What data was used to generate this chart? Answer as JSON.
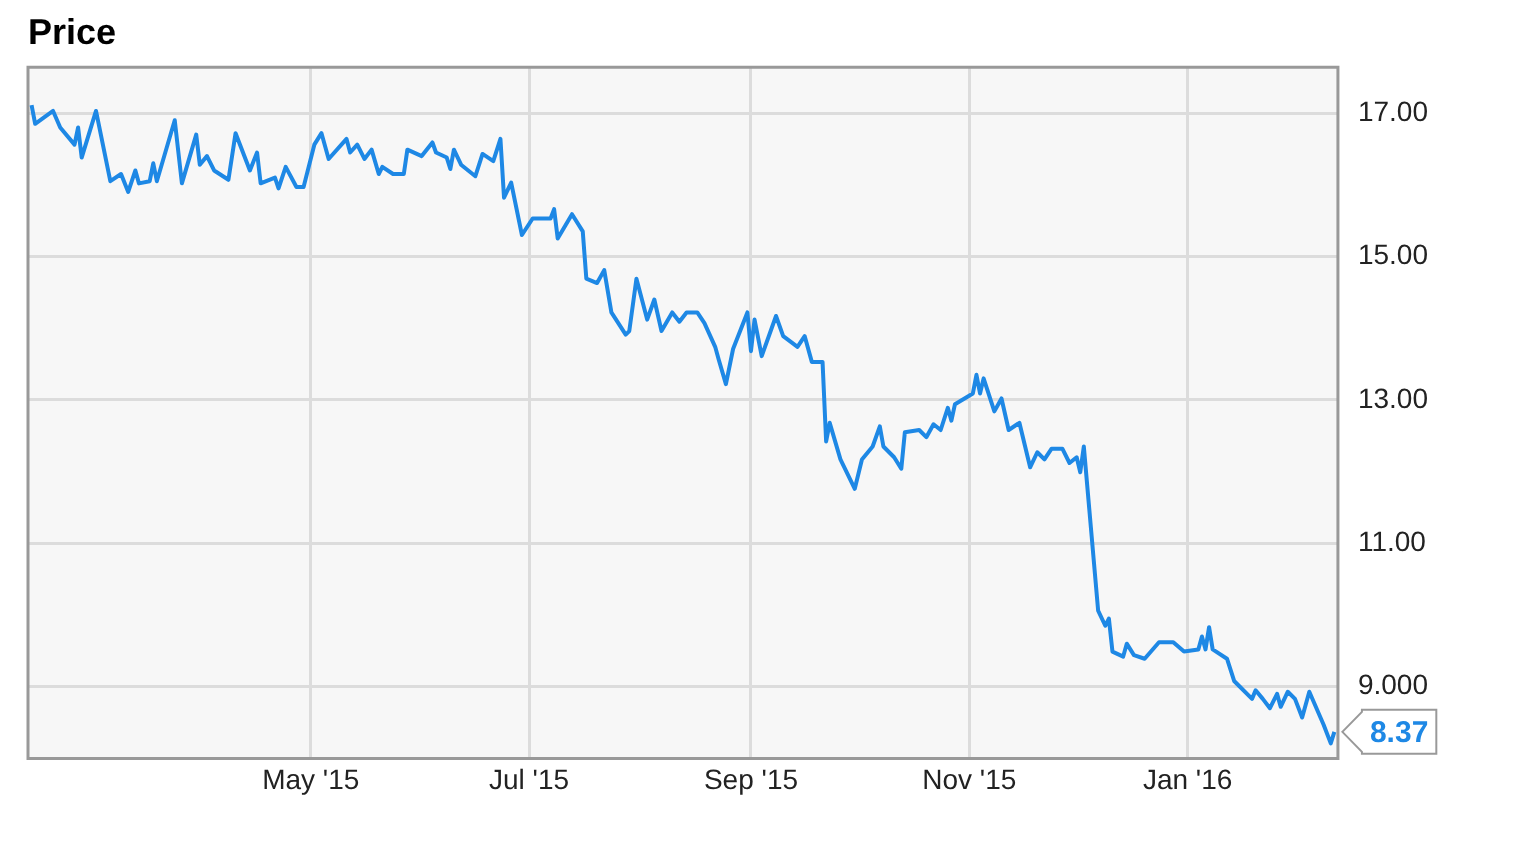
{
  "chart_data": {
    "type": "line",
    "title": "Price",
    "x": [
      "2015-02-12",
      "2015-02-13",
      "2015-02-18",
      "2015-02-20",
      "2015-02-24",
      "2015-02-25",
      "2015-02-26",
      "2015-03-02",
      "2015-03-06",
      "2015-03-09",
      "2015-03-11",
      "2015-03-13",
      "2015-03-14",
      "2015-03-17",
      "2015-03-18",
      "2015-03-19",
      "2015-03-24",
      "2015-03-26",
      "2015-03-30",
      "2015-03-31",
      "2015-04-02",
      "2015-04-04",
      "2015-04-08",
      "2015-04-10",
      "2015-04-14",
      "2015-04-16",
      "2015-04-17",
      "2015-04-21",
      "2015-04-22",
      "2015-04-24",
      "2015-04-27",
      "2015-04-29",
      "2015-05-02",
      "2015-05-04",
      "2015-05-06",
      "2015-05-11",
      "2015-05-12",
      "2015-05-14",
      "2015-05-16",
      "2015-05-18",
      "2015-05-20",
      "2015-05-21",
      "2015-05-24",
      "2015-05-27",
      "2015-05-28",
      "2015-06-01",
      "2015-06-04",
      "2015-06-05",
      "2015-06-08",
      "2015-06-09",
      "2015-06-10",
      "2015-06-12",
      "2015-06-16",
      "2015-06-18",
      "2015-06-21",
      "2015-06-23",
      "2015-06-24",
      "2015-06-26",
      "2015-06-29",
      "2015-07-02",
      "2015-07-07",
      "2015-07-08",
      "2015-07-09",
      "2015-07-13",
      "2015-07-16",
      "2015-07-17",
      "2015-07-20",
      "2015-07-22",
      "2015-07-24",
      "2015-07-28",
      "2015-07-29",
      "2015-07-31",
      "2015-08-03",
      "2015-08-05",
      "2015-08-07",
      "2015-08-10",
      "2015-08-12",
      "2015-08-14",
      "2015-08-17",
      "2015-08-19",
      "2015-08-22",
      "2015-08-23",
      "2015-08-25",
      "2015-08-27",
      "2015-08-31",
      "2015-09-01",
      "2015-09-02",
      "2015-09-04",
      "2015-09-08",
      "2015-09-10",
      "2015-09-14",
      "2015-09-16",
      "2015-09-18",
      "2015-09-21",
      "2015-09-22",
      "2015-09-23",
      "2015-09-26",
      "2015-09-30",
      "2015-10-02",
      "2015-10-05",
      "2015-10-07",
      "2015-10-08",
      "2015-10-11",
      "2015-10-13",
      "2015-10-14",
      "2015-10-18",
      "2015-10-20",
      "2015-10-22",
      "2015-10-24",
      "2015-10-26",
      "2015-10-27",
      "2015-10-28",
      "2015-11-02",
      "2015-11-03",
      "2015-11-04",
      "2015-11-05",
      "2015-11-08",
      "2015-11-10",
      "2015-11-12",
      "2015-11-15",
      "2015-11-18",
      "2015-11-20",
      "2015-11-22",
      "2015-11-24",
      "2015-11-27",
      "2015-11-29",
      "2015-12-01",
      "2015-12-02",
      "2015-12-03",
      "2015-12-07",
      "2015-12-09",
      "2015-12-10",
      "2015-12-11",
      "2015-12-14",
      "2015-12-15",
      "2015-12-17",
      "2015-12-20",
      "2015-12-24",
      "2015-12-28",
      "2015-12-31",
      "2016-01-04",
      "2016-01-05",
      "2016-01-06",
      "2016-01-07",
      "2016-01-08",
      "2016-01-12",
      "2016-01-14",
      "2016-01-19",
      "2016-01-20",
      "2016-01-22",
      "2016-01-24",
      "2016-01-26",
      "2016-01-27",
      "2016-01-29",
      "2016-01-31",
      "2016-02-02",
      "2016-02-04",
      "2016-02-08",
      "2016-02-10",
      "2016-02-11"
    ],
    "series": [
      {
        "color": "#1e88e5",
        "values": [
          17.11,
          16.85,
          17.03,
          16.8,
          16.56,
          16.8,
          16.38,
          17.03,
          16.05,
          16.15,
          15.9,
          16.2,
          16.02,
          16.05,
          16.3,
          16.05,
          16.9,
          16.02,
          16.7,
          16.28,
          16.4,
          16.2,
          16.07,
          16.72,
          16.2,
          16.45,
          16.02,
          16.1,
          15.95,
          16.25,
          15.97,
          15.97,
          16.56,
          16.72,
          16.36,
          16.64,
          16.45,
          16.56,
          16.36,
          16.49,
          16.15,
          16.25,
          16.15,
          16.15,
          16.49,
          16.4,
          16.59,
          16.45,
          16.38,
          16.22,
          16.49,
          16.28,
          16.12,
          16.43,
          16.33,
          16.64,
          15.82,
          16.03,
          15.3,
          15.53,
          15.53,
          15.66,
          15.25,
          15.59,
          15.35,
          14.69,
          14.63,
          14.81,
          14.22,
          13.91,
          13.96,
          14.69,
          14.12,
          14.4,
          13.96,
          14.22,
          14.09,
          14.22,
          14.22,
          14.07,
          13.74,
          13.56,
          13.22,
          13.71,
          14.22,
          13.68,
          14.12,
          13.61,
          14.17,
          13.89,
          13.74,
          13.89,
          13.53,
          13.53,
          12.42,
          12.68,
          12.17,
          11.76,
          12.17,
          12.35,
          12.63,
          12.35,
          12.2,
          12.04,
          12.55,
          12.58,
          12.48,
          12.66,
          12.58,
          12.89,
          12.71,
          12.94,
          13.09,
          13.35,
          13.09,
          13.3,
          12.84,
          13.02,
          12.58,
          12.68,
          12.06,
          12.27,
          12.17,
          12.32,
          12.32,
          12.12,
          12.2,
          11.99,
          12.35,
          10.06,
          9.85,
          9.95,
          9.49,
          9.42,
          9.6,
          9.44,
          9.39,
          9.62,
          9.62,
          9.49,
          9.52,
          9.7,
          9.52,
          9.83,
          9.52,
          9.39,
          9.08,
          8.83,
          8.95,
          8.83,
          8.7,
          8.9,
          8.72,
          8.93,
          8.83,
          8.57,
          8.93,
          8.47,
          8.21,
          8.37
        ]
      }
    ],
    "xlim": [
      "2015-02-11",
      "2016-02-12"
    ],
    "xticks": [
      {
        "value": "2015-05-01",
        "label": "May '15"
      },
      {
        "value": "2015-07-01",
        "label": "Jul '15"
      },
      {
        "value": "2015-09-01",
        "label": "Sep '15"
      },
      {
        "value": "2015-11-01",
        "label": "Nov '15"
      },
      {
        "value": "2016-01-01",
        "label": "Jan '16"
      }
    ],
    "ylim": [
      8.0,
      17.64
    ],
    "yticks": [
      {
        "value": 9,
        "label": "9.000"
      },
      {
        "value": 11,
        "label": "11.00"
      },
      {
        "value": 13,
        "label": "13.00"
      },
      {
        "value": 15,
        "label": "15.00"
      },
      {
        "value": 17,
        "label": "17.00"
      }
    ],
    "annotations": [
      {
        "text": "8.37",
        "x": "2016-02-11",
        "y": 8.37
      }
    ],
    "grid": true,
    "legend": false,
    "marker": "none",
    "line_style": "solid"
  }
}
